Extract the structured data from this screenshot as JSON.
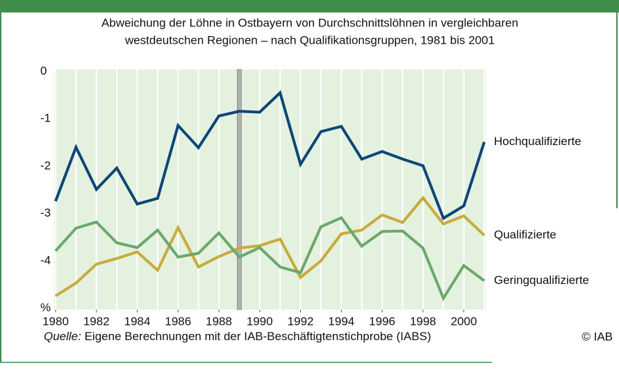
{
  "chart_data": {
    "type": "line",
    "title": "Abweichung der Löhne in Ostbayern von Durchschnittslöhnen in  vergleichbaren",
    "subtitle": "westdeutschen Regionen – nach Qualifikationsgruppen, 1981 bis 2001",
    "x": [
      1980,
      1981,
      1982,
      1983,
      1984,
      1985,
      1986,
      1987,
      1988,
      1989,
      1990,
      1991,
      1992,
      1993,
      1994,
      1995,
      1996,
      1997,
      1998,
      1999,
      2000,
      2001
    ],
    "series": [
      {
        "name": "Hochqualifizierte",
        "color": "#0d4677",
        "values": [
          -2.71,
          -1.57,
          -2.46,
          -2.01,
          -2.77,
          -2.65,
          -1.11,
          -1.58,
          -0.91,
          -0.81,
          -0.83,
          -0.42,
          -1.93,
          -1.24,
          -1.13,
          -1.82,
          -1.66,
          -1.82,
          -1.96,
          -3.07,
          -2.81,
          -1.46
        ]
      },
      {
        "name": "Qualifizierte",
        "color": "#c8aa3c",
        "values": [
          -4.71,
          -4.44,
          -4.04,
          -3.92,
          -3.78,
          -4.17,
          -3.27,
          -4.1,
          -3.88,
          -3.7,
          -3.65,
          -3.51,
          -4.32,
          -3.97,
          -3.4,
          -3.32,
          -3.0,
          -3.16,
          -2.64,
          -3.19,
          -3.02,
          -3.43
        ]
      },
      {
        "name": "Geringqualifizierte",
        "color": "#6aa86a",
        "values": [
          -3.76,
          -3.28,
          -3.15,
          -3.59,
          -3.69,
          -3.32,
          -3.89,
          -3.81,
          -3.38,
          -3.89,
          -3.69,
          -4.1,
          -4.22,
          -3.25,
          -3.06,
          -3.66,
          -3.35,
          -3.34,
          -3.7,
          -4.76,
          -4.07,
          -4.39
        ]
      }
    ],
    "xlim": [
      1980,
      2001
    ],
    "xticks": [
      1980,
      1982,
      1984,
      1986,
      1988,
      1990,
      1992,
      1994,
      1996,
      1998,
      2000
    ],
    "ylim": [
      -5,
      0
    ],
    "yticks": [
      0,
      -1,
      -2,
      -3,
      -4,
      {
        "value": -5,
        "label": "%"
      }
    ],
    "vline_x": 1989,
    "grid": true,
    "source_label": "Quelle:",
    "source_text": " Eigene Berechnungen mit der IAB-Beschäftigtenstichprobe (IABS)",
    "copyright": "© IAB"
  }
}
